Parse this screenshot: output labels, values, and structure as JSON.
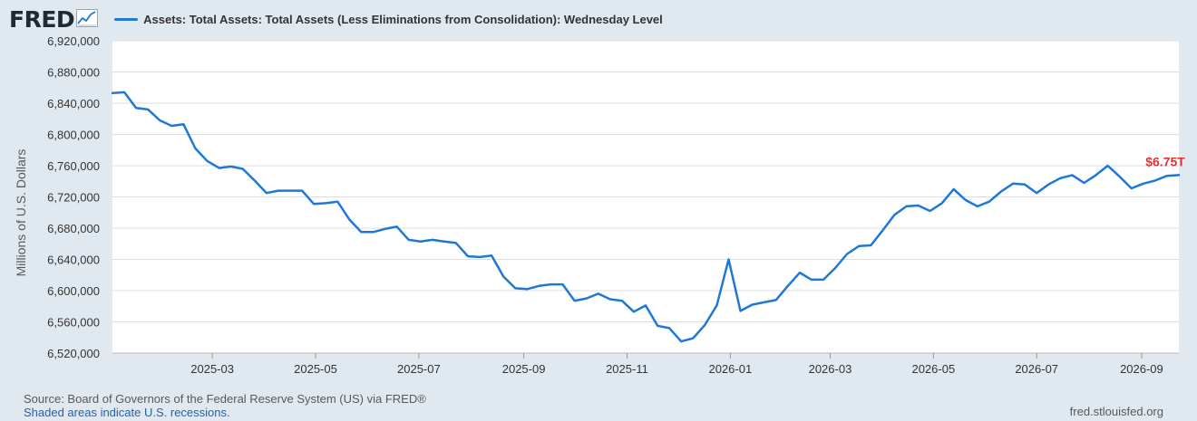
{
  "header": {
    "logo_text": "FRED",
    "logo_icon": "trend-graph-icon",
    "series_label": "Assets: Total Assets: Total Assets (Less Eliminations from Consolidation): Wednesday Level"
  },
  "footer": {
    "source": "Source: Board of Governors of the Federal Reserve System (US) via FRED®",
    "recession_note": "Shaded areas indicate U.S. recessions.",
    "site": "fred.stlouisfed.org"
  },
  "colors": {
    "line": "#1f77d6",
    "annotation": "#e03131",
    "plot_bg": "#ffffff",
    "page_bg": "#e1e9f0",
    "grid": "#dddddd"
  },
  "chart_data": {
    "type": "line",
    "title": "",
    "xlabel": "",
    "ylabel": "Millions of U.S. Dollars",
    "x_start": "2025-01-01",
    "xlim": [
      "2025-01-01",
      "2026-09-23"
    ],
    "ylim": [
      6520000,
      6920000
    ],
    "y_ticks": [
      6520000,
      6560000,
      6600000,
      6640000,
      6680000,
      6720000,
      6760000,
      6800000,
      6840000,
      6880000,
      6920000
    ],
    "y_tick_labels": [
      "6,520,000",
      "6,560,000",
      "6,600,000",
      "6,640,000",
      "6,680,000",
      "6,720,000",
      "6,760,000",
      "6,800,000",
      "6,840,000",
      "6,880,000",
      "6,920,000"
    ],
    "x_ticks": [
      "2025-03-01",
      "2025-05-01",
      "2025-07-01",
      "2025-09-01",
      "2025-11-01",
      "2026-01-01",
      "2026-03-01",
      "2026-05-01",
      "2026-07-01",
      "2026-09-01"
    ],
    "x_tick_labels": [
      "2025-03",
      "2025-05",
      "2025-07",
      "2025-09",
      "2025-11",
      "2026-01",
      "2026-03",
      "2026-05",
      "2026-07",
      "2026-09"
    ],
    "grid": "horizontal",
    "annotation": {
      "text": "$6.75T",
      "at": "last"
    },
    "series": [
      {
        "name": "Assets: Total Assets: Total Assets (Less Eliminations from Consolidation): Wednesday Level",
        "x": [
          "2025-01-01",
          "2025-01-08",
          "2025-01-15",
          "2025-01-22",
          "2025-01-29",
          "2025-02-05",
          "2025-02-12",
          "2025-02-19",
          "2025-02-26",
          "2025-03-05",
          "2025-03-12",
          "2025-03-19",
          "2025-03-26",
          "2025-04-02",
          "2025-04-09",
          "2025-04-16",
          "2025-04-23",
          "2025-04-30",
          "2025-05-07",
          "2025-05-14",
          "2025-05-21",
          "2025-05-28",
          "2025-06-04",
          "2025-06-11",
          "2025-06-18",
          "2025-06-25",
          "2025-07-02",
          "2025-07-09",
          "2025-07-16",
          "2025-07-23",
          "2025-07-30",
          "2025-08-06",
          "2025-08-13",
          "2025-08-20",
          "2025-08-27",
          "2025-09-03",
          "2025-09-10",
          "2025-09-17",
          "2025-09-24",
          "2025-10-01",
          "2025-10-08",
          "2025-10-15",
          "2025-10-22",
          "2025-10-29",
          "2025-11-05",
          "2025-11-12",
          "2025-11-19",
          "2025-11-26",
          "2025-12-03",
          "2025-12-10",
          "2025-12-17",
          "2025-12-24",
          "2025-12-31",
          "2026-01-07",
          "2026-01-14",
          "2026-01-21",
          "2026-01-28",
          "2026-02-04",
          "2026-02-11",
          "2026-02-18",
          "2026-02-25",
          "2026-03-04",
          "2026-03-11",
          "2026-03-18",
          "2026-03-25",
          "2026-04-01",
          "2026-04-08",
          "2026-04-15",
          "2026-04-22",
          "2026-04-29",
          "2026-05-06",
          "2026-05-13",
          "2026-05-20",
          "2026-05-27",
          "2026-06-03",
          "2026-06-10",
          "2026-06-17",
          "2026-06-24",
          "2026-07-01",
          "2026-07-08",
          "2026-07-15",
          "2026-07-22",
          "2026-07-29",
          "2026-08-05",
          "2026-08-12",
          "2026-08-19",
          "2026-08-26",
          "2026-09-02",
          "2026-09-09",
          "2026-09-16",
          "2026-09-23"
        ],
        "values": [
          6853000,
          6854000,
          6834000,
          6832000,
          6818000,
          6811000,
          6813000,
          6782000,
          6766000,
          6757000,
          6759000,
          6756000,
          6741000,
          6725000,
          6728000,
          6728000,
          6728000,
          6711000,
          6712000,
          6714000,
          6691000,
          6675000,
          6675000,
          6679000,
          6682000,
          6665000,
          6663000,
          6665000,
          6663000,
          6661000,
          6644000,
          6643000,
          6645000,
          6618000,
          6603000,
          6602000,
          6606000,
          6608000,
          6608000,
          6587000,
          6590000,
          6596000,
          6589000,
          6587000,
          6573000,
          6581000,
          6555000,
          6552000,
          6535000,
          6539000,
          6556000,
          6581000,
          6640000,
          6574000,
          6582000,
          6585000,
          6588000,
          6606000,
          6623000,
          6614000,
          6614000,
          6629000,
          6647000,
          6657000,
          6658000,
          6677000,
          6697000,
          6708000,
          6709000,
          6702000,
          6712000,
          6730000,
          6716000,
          6708000,
          6714000,
          6727000,
          6737000,
          6736000,
          6725000,
          6736000,
          6744000,
          6748000,
          6738000,
          6748000,
          6760000,
          6746000,
          6731000,
          6737000,
          6741000,
          6747000,
          6748000
        ]
      }
    ]
  }
}
